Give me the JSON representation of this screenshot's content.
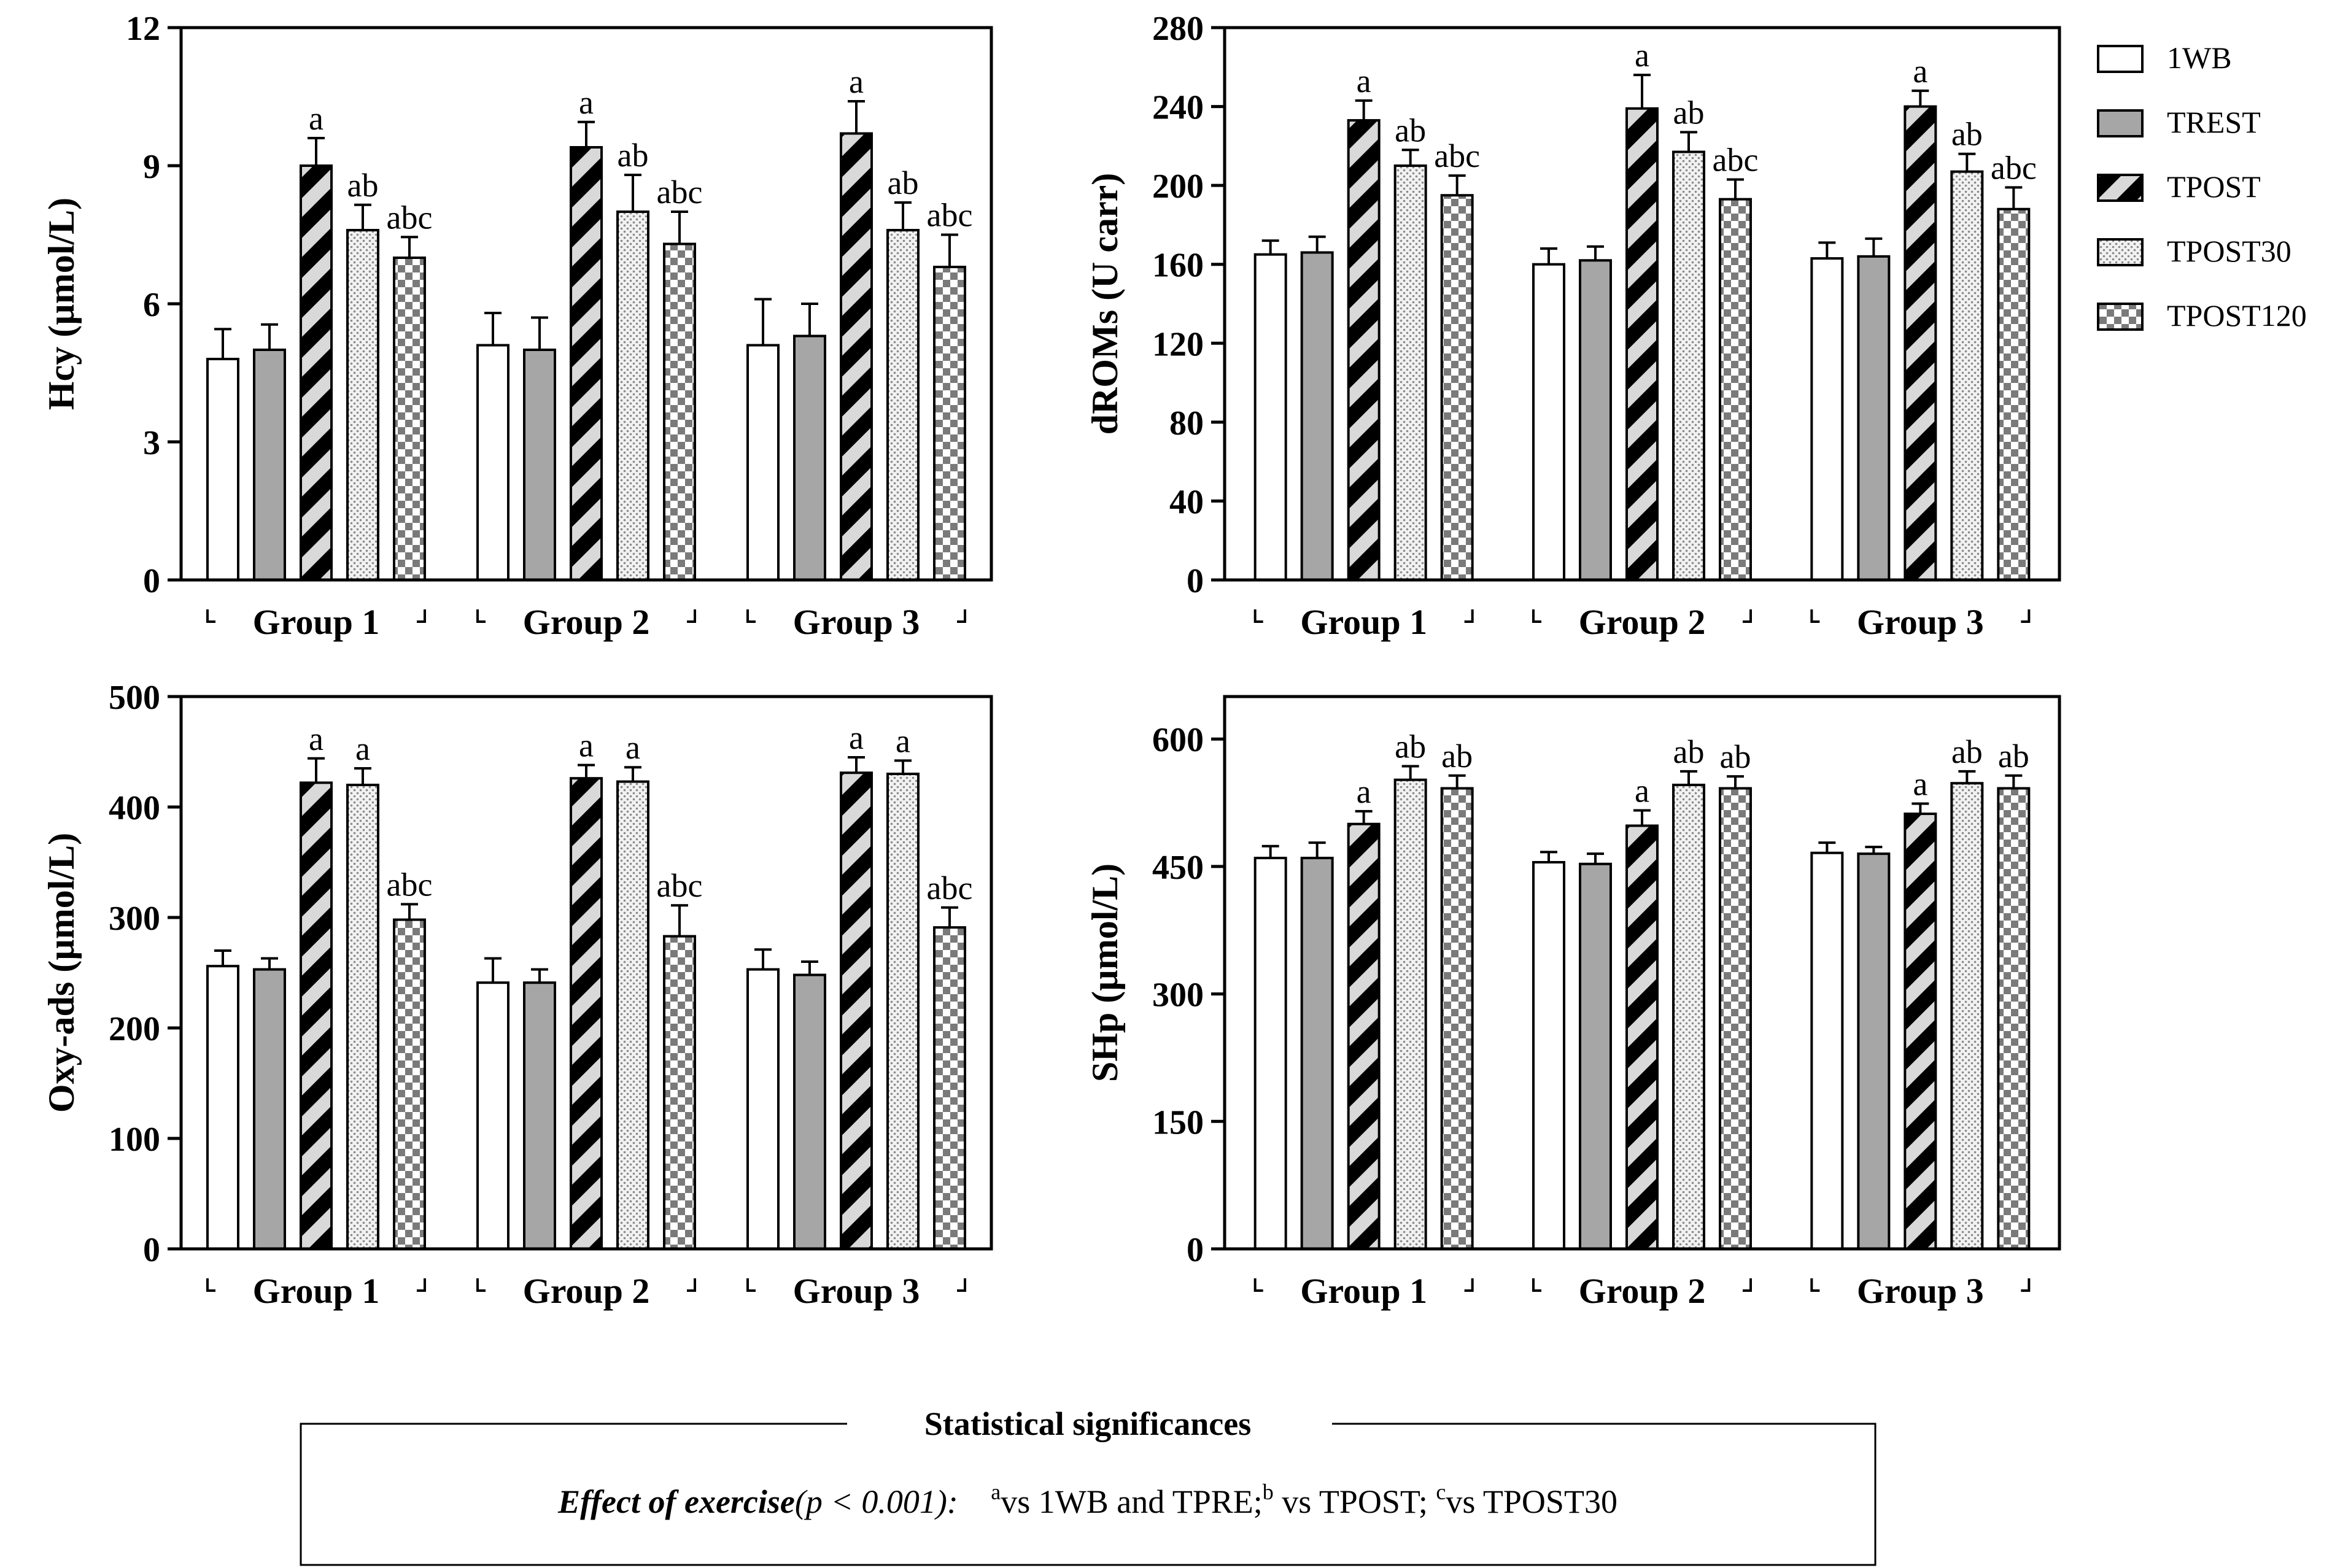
{
  "chart_data": [
    {
      "type": "bar",
      "panel": "top-left",
      "ylabel": "Hcy (µmol/L)",
      "ylim": [
        0,
        12
      ],
      "yticks": [
        0,
        3,
        6,
        9,
        12
      ],
      "categories": [
        "Group 1",
        "Group 2",
        "Group 3"
      ],
      "series": [
        {
          "name": "1WB",
          "values": [
            4.8,
            5.1,
            5.1
          ],
          "errors": [
            0.65,
            0.7,
            1.0
          ],
          "labels": [
            "",
            "",
            ""
          ]
        },
        {
          "name": "TREST",
          "values": [
            5.0,
            5.0,
            5.3
          ],
          "errors": [
            0.55,
            0.7,
            0.7
          ],
          "labels": [
            "",
            "",
            ""
          ]
        },
        {
          "name": "TPOST",
          "values": [
            9.0,
            9.4,
            9.7
          ],
          "errors": [
            0.6,
            0.55,
            0.7
          ],
          "labels": [
            "a",
            "a",
            "a"
          ]
        },
        {
          "name": "TPOST30",
          "values": [
            7.6,
            8.0,
            7.6
          ],
          "errors": [
            0.55,
            0.8,
            0.6
          ],
          "labels": [
            "ab",
            "ab",
            "ab"
          ]
        },
        {
          "name": "TPOST120",
          "values": [
            7.0,
            7.3,
            6.8
          ],
          "errors": [
            0.45,
            0.7,
            0.7
          ],
          "labels": [
            "abc",
            "abc",
            "abc"
          ]
        }
      ]
    },
    {
      "type": "bar",
      "panel": "top-right",
      "ylabel": "dROMs (U carr)",
      "ylim": [
        0,
        280
      ],
      "yticks": [
        0,
        40,
        80,
        120,
        160,
        200,
        240,
        280
      ],
      "categories": [
        "Group 1",
        "Group 2",
        "Group 3"
      ],
      "series": [
        {
          "name": "1WB",
          "values": [
            165,
            160,
            163
          ],
          "errors": [
            7,
            8,
            8
          ],
          "labels": [
            "",
            "",
            ""
          ]
        },
        {
          "name": "TREST",
          "values": [
            166,
            162,
            164
          ],
          "errors": [
            8,
            7,
            9
          ],
          "labels": [
            "",
            "",
            ""
          ]
        },
        {
          "name": "TPOST",
          "values": [
            233,
            239,
            240
          ],
          "errors": [
            10,
            17,
            8
          ],
          "labels": [
            "a",
            "a",
            "a"
          ]
        },
        {
          "name": "TPOST30",
          "values": [
            210,
            217,
            207
          ],
          "errors": [
            8,
            10,
            9
          ],
          "labels": [
            "ab",
            "ab",
            "ab"
          ]
        },
        {
          "name": "TPOST120",
          "values": [
            195,
            193,
            188
          ],
          "errors": [
            10,
            10,
            11
          ],
          "labels": [
            "abc",
            "abc",
            "abc"
          ]
        }
      ]
    },
    {
      "type": "bar",
      "panel": "bottom-left",
      "ylabel": "Oxy-ads (µmol/L)",
      "ylim": [
        0,
        500
      ],
      "yticks": [
        0,
        100,
        200,
        300,
        400,
        500
      ],
      "categories": [
        "Group 1",
        "Group 2",
        "Group 3"
      ],
      "series": [
        {
          "name": "1WB",
          "values": [
            256,
            241,
            253
          ],
          "errors": [
            14,
            22,
            18
          ],
          "labels": [
            "",
            "",
            ""
          ]
        },
        {
          "name": "TREST",
          "values": [
            253,
            241,
            248
          ],
          "errors": [
            10,
            12,
            12
          ],
          "labels": [
            "",
            "",
            ""
          ]
        },
        {
          "name": "TPOST",
          "values": [
            422,
            426,
            431
          ],
          "errors": [
            22,
            12,
            14
          ],
          "labels": [
            "a",
            "a",
            "a"
          ]
        },
        {
          "name": "TPOST30",
          "values": [
            420,
            423,
            430
          ],
          "errors": [
            15,
            13,
            12
          ],
          "labels": [
            "a",
            "a",
            "a"
          ]
        },
        {
          "name": "TPOST120",
          "values": [
            298,
            283,
            291
          ],
          "errors": [
            14,
            28,
            18
          ],
          "labels": [
            "abc",
            "abc",
            "abc"
          ]
        }
      ]
    },
    {
      "type": "bar",
      "panel": "bottom-right",
      "ylabel": "SHp (µmol/L)",
      "ylim": [
        0,
        650
      ],
      "yticks": [
        0,
        150,
        300,
        450,
        600
      ],
      "categories": [
        "Group 1",
        "Group 2",
        "Group 3"
      ],
      "series": [
        {
          "name": "1WB",
          "values": [
            460,
            455,
            466
          ],
          "errors": [
            14,
            12,
            12
          ],
          "labels": [
            "",
            "",
            ""
          ]
        },
        {
          "name": "TREST",
          "values": [
            460,
            453,
            465
          ],
          "errors": [
            18,
            12,
            8
          ],
          "labels": [
            "",
            "",
            ""
          ]
        },
        {
          "name": "TPOST",
          "values": [
            500,
            498,
            512
          ],
          "errors": [
            15,
            18,
            12
          ],
          "labels": [
            "a",
            "a",
            "a"
          ]
        },
        {
          "name": "TPOST30",
          "values": [
            552,
            546,
            548
          ],
          "errors": [
            16,
            16,
            14
          ],
          "labels": [
            "ab",
            "ab",
            "ab"
          ]
        },
        {
          "name": "TPOST120",
          "values": [
            542,
            542,
            542
          ],
          "errors": [
            15,
            14,
            15
          ],
          "labels": [
            "ab",
            "ab",
            "ab"
          ]
        }
      ]
    }
  ],
  "legend": {
    "items": [
      {
        "name": "1WB",
        "pattern": "white"
      },
      {
        "name": "TREST",
        "pattern": "gray"
      },
      {
        "name": "TPOST",
        "pattern": "diagonal-stripe"
      },
      {
        "name": "TPOST30",
        "pattern": "dotted"
      },
      {
        "name": "TPOST120",
        "pattern": "checker"
      }
    ]
  },
  "footnote": {
    "title": "Statistical significances",
    "effect_label": "Effect of exercise",
    "p_value": "(p < 0.001):",
    "sup_a": "a",
    "text_a": "vs 1WB and TPRE;",
    "sup_b": "b",
    "text_b": " vs TPOST;",
    "sup_c": "c",
    "text_c": "vs TPOST30"
  },
  "colors": {
    "gray_fill": "#a6a6a6",
    "stripe_light": "#d9d9d9",
    "axis": "#000000"
  }
}
